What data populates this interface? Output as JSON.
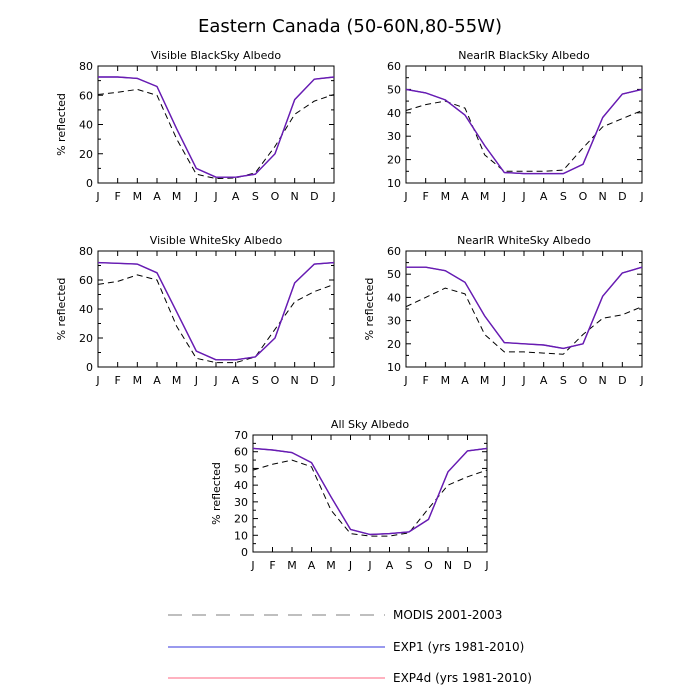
{
  "figure_title": "Eastern Canada (50-60N,80-55W)",
  "month_labels": [
    "J",
    "F",
    "M",
    "A",
    "M",
    "J",
    "J",
    "A",
    "S",
    "O",
    "N",
    "D",
    "J"
  ],
  "colors": {
    "modis": "#000000",
    "exp1": "#3333dd",
    "exp4d": "#ff6680",
    "overlap": "#6a1bb0"
  },
  "legend": [
    {
      "label": "MODIS 2001-2003",
      "color": "#aaaaaa",
      "style": "dashed"
    },
    {
      "label": "EXP1 (yrs 1981-2010)",
      "color": "#3333dd",
      "style": "solid"
    },
    {
      "label": "EXP4d (yrs 1981-2010)",
      "color": "#ff6680",
      "style": "solid"
    }
  ],
  "chart_data": [
    {
      "type": "line",
      "title": "Visible BlackSky Albedo",
      "ylabel": "% reflected",
      "ylim": [
        0,
        80
      ],
      "yticks": [
        0,
        20,
        40,
        60,
        80
      ],
      "x": [
        1,
        2,
        3,
        4,
        5,
        6,
        7,
        8,
        9,
        10,
        11,
        12,
        13
      ],
      "series": [
        {
          "name": "MODIS 2001-2003",
          "values": [
            60.5,
            62,
            64,
            60,
            30,
            6,
            3,
            3.5,
            7,
            25,
            47,
            56,
            60.5
          ]
        },
        {
          "name": "EXP1 (yrs 1981-2010)",
          "values": [
            72.5,
            72.5,
            71.5,
            66,
            37,
            10,
            4,
            4,
            6,
            20,
            57,
            71,
            72.5
          ]
        },
        {
          "name": "EXP4d (yrs 1981-2010)",
          "values": [
            72.5,
            72.5,
            71.5,
            66,
            37,
            10,
            4,
            4,
            6,
            20,
            57,
            71,
            72.5
          ]
        }
      ]
    },
    {
      "type": "line",
      "title": "NearIR BlackSky Albedo",
      "ylabel": "",
      "ylim": [
        10,
        60
      ],
      "yticks": [
        10,
        20,
        30,
        40,
        50,
        60
      ],
      "x": [
        1,
        2,
        3,
        4,
        5,
        6,
        7,
        8,
        9,
        10,
        11,
        12,
        13
      ],
      "series": [
        {
          "name": "MODIS 2001-2003",
          "values": [
            41,
            43.5,
            45,
            42,
            22,
            15,
            15,
            15,
            15.5,
            25,
            34,
            37.5,
            41
          ]
        },
        {
          "name": "EXP1 (yrs 1981-2010)",
          "values": [
            50,
            48.5,
            45.5,
            39,
            26,
            14.5,
            14,
            14,
            14,
            18,
            38,
            48,
            50
          ]
        },
        {
          "name": "EXP4d (yrs 1981-2010)",
          "values": [
            50,
            48.5,
            45.5,
            39,
            26,
            14.5,
            14,
            14,
            14,
            18,
            38,
            48,
            50
          ]
        }
      ]
    },
    {
      "type": "line",
      "title": "Visible WhiteSky Albedo",
      "ylabel": "% reflected",
      "ylim": [
        0,
        80
      ],
      "yticks": [
        0,
        20,
        40,
        60,
        80
      ],
      "x": [
        1,
        2,
        3,
        4,
        5,
        6,
        7,
        8,
        9,
        10,
        11,
        12,
        13
      ],
      "series": [
        {
          "name": "MODIS 2001-2003",
          "values": [
            57,
            59,
            63.5,
            60,
            28,
            6,
            3,
            3,
            7,
            26,
            45,
            52,
            57
          ]
        },
        {
          "name": "EXP1 (yrs 1981-2010)",
          "values": [
            72,
            71.5,
            71,
            65,
            38,
            11,
            5,
            5,
            7,
            20,
            58,
            71,
            72
          ]
        },
        {
          "name": "EXP4d (yrs 1981-2010)",
          "values": [
            72,
            71.5,
            71,
            65,
            38,
            11,
            5,
            5,
            7,
            20,
            58,
            71,
            72
          ]
        }
      ]
    },
    {
      "type": "line",
      "title": "NearIR WhiteSky Albedo",
      "ylabel": "% reflected",
      "ylim": [
        10,
        60
      ],
      "yticks": [
        10,
        20,
        30,
        40,
        50,
        60
      ],
      "x": [
        1,
        2,
        3,
        4,
        5,
        6,
        7,
        8,
        9,
        10,
        11,
        12,
        13
      ],
      "series": [
        {
          "name": "MODIS 2001-2003",
          "values": [
            36,
            40,
            44,
            41.5,
            24,
            16.5,
            16.5,
            16,
            15.5,
            24,
            31,
            32.5,
            36
          ]
        },
        {
          "name": "EXP1 (yrs 1981-2010)",
          "values": [
            53,
            53,
            51.5,
            46.5,
            32,
            20.5,
            20,
            19.5,
            18,
            20,
            40.5,
            50.5,
            53
          ]
        },
        {
          "name": "EXP4d (yrs 1981-2010)",
          "values": [
            53,
            53,
            51.5,
            46.5,
            32,
            20.5,
            20,
            19.5,
            18,
            20,
            40.5,
            50.5,
            53
          ]
        }
      ]
    },
    {
      "type": "line",
      "title": "All Sky Albedo",
      "ylabel": "% reflected",
      "ylim": [
        0,
        70
      ],
      "yticks": [
        0,
        10,
        20,
        30,
        40,
        50,
        60,
        70
      ],
      "x": [
        1,
        2,
        3,
        4,
        5,
        6,
        7,
        8,
        9,
        10,
        11,
        12,
        13
      ],
      "series": [
        {
          "name": "MODIS 2001-2003",
          "values": [
            49,
            52.5,
            55,
            51,
            25,
            11,
            9.5,
            9.5,
            11.5,
            26,
            40,
            45,
            49
          ]
        },
        {
          "name": "EXP1 (yrs 1981-2010)",
          "values": [
            62,
            61,
            59.5,
            53.5,
            33,
            13.5,
            10.5,
            11,
            12,
            19.5,
            48,
            60.5,
            62
          ]
        },
        {
          "name": "EXP4d (yrs 1981-2010)",
          "values": [
            62,
            61,
            59.5,
            53.5,
            33,
            13.5,
            10.5,
            11,
            12,
            19.5,
            48,
            60.5,
            62
          ]
        }
      ]
    }
  ]
}
